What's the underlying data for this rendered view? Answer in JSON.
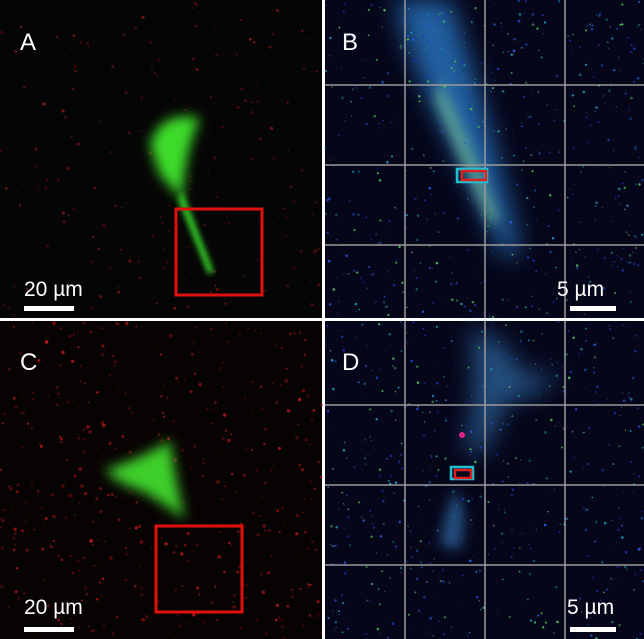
{
  "panels": [
    {
      "label": "A",
      "scale_bar": "20 µm"
    },
    {
      "label": "B",
      "scale_bar": "5 µm"
    },
    {
      "label": "C",
      "scale_bar": "20 µm"
    },
    {
      "label": "D",
      "scale_bar": "5 µm"
    }
  ]
}
